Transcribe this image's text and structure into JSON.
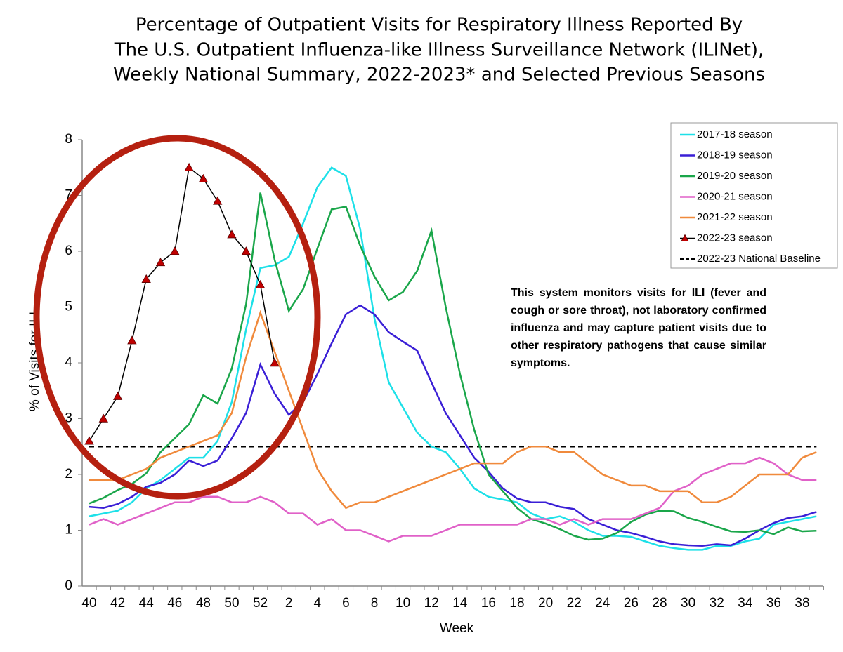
{
  "chart_data": {
    "type": "line",
    "title": [
      "Percentage of Outpatient Visits for Respiratory Illness Reported By",
      "The U.S. Outpatient Influenza-like Illness Surveillance Network (ILINet),",
      "Weekly National Summary, 2022-2023* and Selected Previous Seasons"
    ],
    "x_label": "Week",
    "y_label": "% of Visits for ILI",
    "annotation": "This system monitors visits for ILI (fever and cough or sore throat), not laboratory confirmed influenza and may capture patient visits due to other respiratory pathogens that cause similar symptoms.",
    "categories": [
      "40",
      null,
      "42",
      null,
      "44",
      null,
      "46",
      null,
      "48",
      null,
      "50",
      null,
      "52",
      null,
      "2",
      null,
      "4",
      null,
      "6",
      null,
      "8",
      null,
      "10",
      null,
      "12",
      null,
      "14",
      null,
      "16",
      null,
      "18",
      null,
      "20",
      null,
      "22",
      null,
      "24",
      null,
      "26",
      null,
      "28",
      null,
      "30",
      null,
      "32",
      null,
      "34",
      null,
      "36",
      null,
      "38",
      null
    ],
    "ylim": [
      0,
      8
    ],
    "yticks": [
      0,
      1,
      2,
      3,
      4,
      5,
      6,
      7,
      8
    ],
    "series": [
      {
        "name": "2017-18 season",
        "color": "#1de0e8",
        "values": [
          1.25,
          1.3,
          1.35,
          1.5,
          1.75,
          1.9,
          2.1,
          2.3,
          2.3,
          2.6,
          3.3,
          4.6,
          5.7,
          5.75,
          5.9,
          6.5,
          7.15,
          7.5,
          7.35,
          6.4,
          4.8,
          3.65,
          3.2,
          2.75,
          2.5,
          2.4,
          2.1,
          1.75,
          1.6,
          1.55,
          1.5,
          1.3,
          1.2,
          1.25,
          1.15,
          1.0,
          0.9,
          0.9,
          0.88,
          0.8,
          0.72,
          0.68,
          0.65,
          0.65,
          0.72,
          0.72,
          0.8,
          0.85,
          1.1,
          1.15,
          1.2,
          1.25
        ]
      },
      {
        "name": "2018-19 season",
        "color": "#3a1fd6",
        "values": [
          1.42,
          1.4,
          1.47,
          1.6,
          1.78,
          1.85,
          2.0,
          2.25,
          2.15,
          2.25,
          2.65,
          3.1,
          3.97,
          3.45,
          3.07,
          3.3,
          3.8,
          4.35,
          4.87,
          5.03,
          4.87,
          4.55,
          4.38,
          4.22,
          3.65,
          3.1,
          2.7,
          2.3,
          2.05,
          1.75,
          1.57,
          1.5,
          1.5,
          1.42,
          1.38,
          1.2,
          1.1,
          1.0,
          0.95,
          0.88,
          0.8,
          0.75,
          0.73,
          0.72,
          0.75,
          0.73,
          0.85,
          1.0,
          1.13,
          1.22,
          1.25,
          1.33
        ]
      },
      {
        "name": "2019-20 season",
        "color": "#1aa64a",
        "values": [
          1.48,
          1.58,
          1.72,
          1.83,
          2.02,
          2.4,
          2.65,
          2.9,
          3.42,
          3.27,
          3.9,
          5.05,
          7.05,
          5.85,
          4.93,
          5.32,
          6.05,
          6.75,
          6.8,
          6.1,
          5.55,
          5.12,
          5.27,
          5.65,
          6.37,
          5.0,
          3.8,
          2.8,
          2.0,
          1.7,
          1.4,
          1.2,
          1.12,
          1.02,
          0.9,
          0.83,
          0.85,
          0.95,
          1.15,
          1.28,
          1.35,
          1.34,
          1.22,
          1.15,
          1.06,
          0.98,
          0.97,
          1.0,
          0.93,
          1.05,
          0.98,
          0.99
        ]
      },
      {
        "name": "2020-21 season",
        "color": "#e061c8",
        "values": [
          1.1,
          1.2,
          1.1,
          1.2,
          1.3,
          1.4,
          1.5,
          1.5,
          1.6,
          1.6,
          1.5,
          1.5,
          1.6,
          1.5,
          1.3,
          1.3,
          1.1,
          1.2,
          1.0,
          1.0,
          0.9,
          0.8,
          0.9,
          0.9,
          0.9,
          1.0,
          1.1,
          1.1,
          1.1,
          1.1,
          1.1,
          1.2,
          1.2,
          1.1,
          1.2,
          1.1,
          1.2,
          1.2,
          1.2,
          1.3,
          1.4,
          1.7,
          1.8,
          2.0,
          2.1,
          2.2,
          2.2,
          2.3,
          2.2,
          2.0,
          1.9,
          1.9
        ]
      },
      {
        "name": "2021-22 season",
        "color": "#f08a3c",
        "values": [
          1.9,
          1.9,
          1.9,
          2.0,
          2.1,
          2.3,
          2.4,
          2.5,
          2.6,
          2.7,
          3.1,
          4.1,
          4.9,
          4.2,
          3.5,
          2.8,
          2.1,
          1.7,
          1.4,
          1.5,
          1.5,
          1.6,
          1.7,
          1.8,
          1.9,
          2.0,
          2.1,
          2.2,
          2.2,
          2.2,
          2.4,
          2.5,
          2.5,
          2.4,
          2.4,
          2.2,
          2.0,
          1.9,
          1.8,
          1.8,
          1.7,
          1.7,
          1.7,
          1.5,
          1.5,
          1.6,
          1.8,
          2.0,
          2.0,
          2.0,
          2.3,
          2.4
        ]
      },
      {
        "name": "2022-23 season",
        "color": "#000000",
        "marker": "triangle",
        "marker_color": "#c00000",
        "values": [
          2.6,
          3.0,
          3.4,
          4.4,
          5.5,
          5.8,
          6.0,
          7.5,
          7.3,
          6.9,
          6.3,
          6.0,
          5.4,
          4.0,
          null,
          null,
          null,
          null,
          null,
          null,
          null,
          null,
          null,
          null,
          null,
          null,
          null,
          null,
          null,
          null,
          null,
          null,
          null,
          null,
          null,
          null,
          null,
          null,
          null,
          null,
          null,
          null,
          null,
          null,
          null,
          null,
          null,
          null,
          null,
          null,
          null,
          null
        ]
      }
    ],
    "baseline": {
      "name": "2022-23 National Baseline",
      "value": 2.5,
      "color": "#000000"
    }
  }
}
